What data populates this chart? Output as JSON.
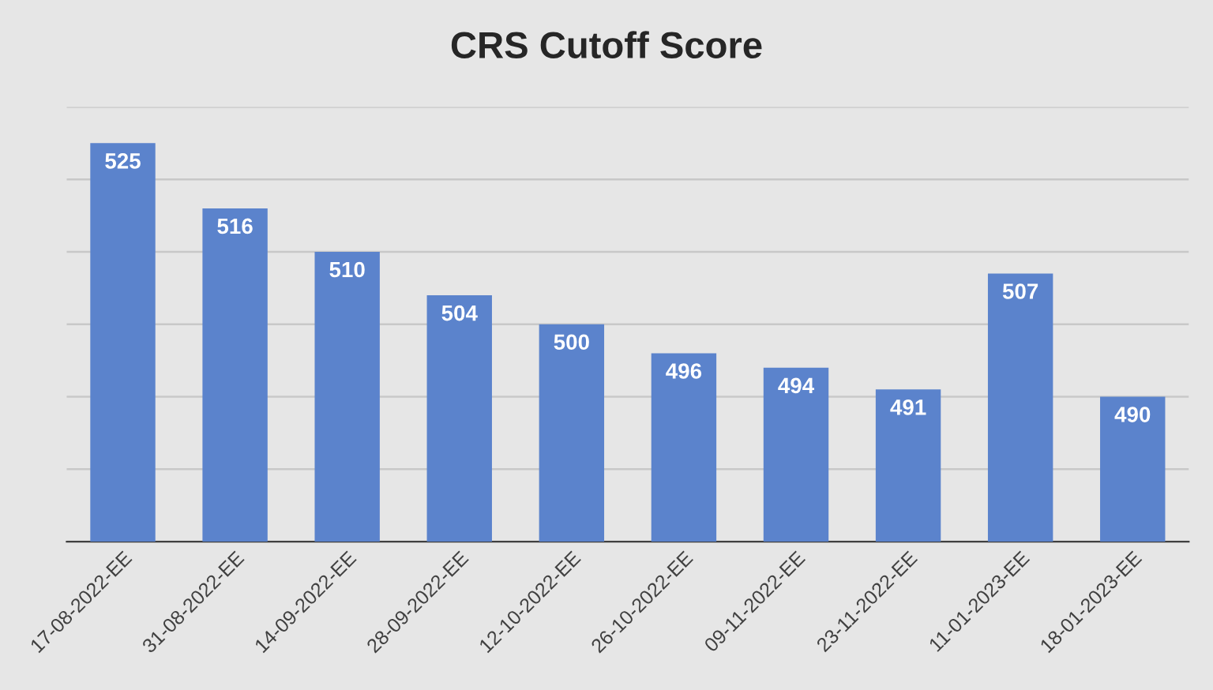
{
  "chart_data": {
    "type": "bar",
    "title": "CRS Cutoff Score",
    "categories": [
      "17-08-2022-EE",
      "31-08-2022-EE",
      "14-09-2022-EE",
      "28-09-2022-EE",
      "12-10-2022-EE",
      "26-10-2022-EE",
      "09-11-2022-EE",
      "23-11-2022-EE",
      "11-01-2023-EE",
      "18-01-2023-EE"
    ],
    "values": [
      525,
      516,
      510,
      504,
      500,
      496,
      494,
      491,
      507,
      490
    ],
    "color": "#5b83cc",
    "ylim": [
      470,
      530
    ],
    "yticks": [
      {
        "value": 470,
        "label": null
      },
      {
        "value": 480,
        "label": null
      },
      {
        "value": 490,
        "label": null
      },
      {
        "value": 500,
        "label": null
      },
      {
        "value": 510,
        "label": null
      },
      {
        "value": 520,
        "label": null
      },
      {
        "value": 530,
        "label": null
      }
    ],
    "tick_labels": "x",
    "grid": "y",
    "data_labels": true
  }
}
